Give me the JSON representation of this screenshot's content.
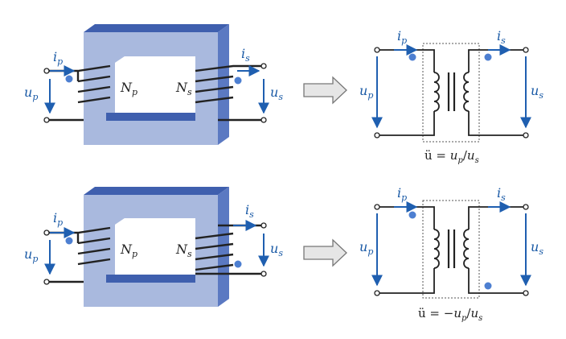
{
  "colors": {
    "core_front": "#a9b9de",
    "core_top": "#3f5fae",
    "core_side": "#5b79c2",
    "signal_blue": "#1f5fb0",
    "dot": "#4d7fd1",
    "wire": "#222222"
  },
  "icons": {
    "arrow": "right-arrow-icon",
    "polarity": "dot-marker"
  },
  "diagrams": [
    {
      "pictorial": {
        "i_primary": "i",
        "i_primary_sub": "p",
        "u_primary": "u",
        "u_primary_sub": "p",
        "n_primary": "N",
        "n_primary_sub": "p",
        "n_secondary": "N",
        "n_secondary_sub": "s",
        "i_secondary": "i",
        "i_secondary_sub": "s",
        "u_secondary": "u",
        "u_secondary_sub": "s"
      },
      "schematic": {
        "i_primary": "i",
        "i_primary_sub": "p",
        "i_secondary": "i",
        "i_secondary_sub": "s",
        "u_primary": "u",
        "u_primary_sub": "p",
        "u_secondary": "u",
        "u_secondary_sub": "s",
        "ratio_a": "ü = ",
        "ratio_b": "u",
        "ratio_b_sub": "p",
        "ratio_c": "/",
        "ratio_d": "u",
        "ratio_d_sub": "s"
      }
    },
    {
      "pictorial": {
        "i_primary": "i",
        "i_primary_sub": "p",
        "u_primary": "u",
        "u_primary_sub": "p",
        "n_primary": "N",
        "n_primary_sub": "p",
        "n_secondary": "N",
        "n_secondary_sub": "s",
        "i_secondary": "i",
        "i_secondary_sub": "s",
        "u_secondary": "u",
        "u_secondary_sub": "s"
      },
      "schematic": {
        "i_primary": "i",
        "i_primary_sub": "p",
        "i_secondary": "i",
        "i_secondary_sub": "s",
        "u_primary": "u",
        "u_primary_sub": "p",
        "u_secondary": "u",
        "u_secondary_sub": "s",
        "ratio_a": "ü = −",
        "ratio_b": "u",
        "ratio_b_sub": "p",
        "ratio_c": "/",
        "ratio_d": "u",
        "ratio_d_sub": "s"
      }
    }
  ]
}
